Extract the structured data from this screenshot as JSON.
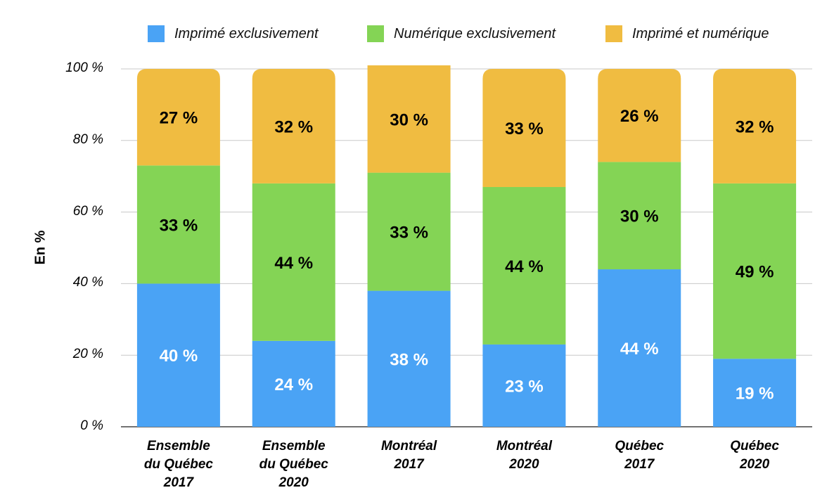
{
  "chart_data": {
    "type": "bar",
    "stacked": true,
    "categories": [
      "Ensemble\ndu Québec\n2017",
      "Ensemble\ndu Québec\n2020",
      "Montréal\n2017",
      "Montréal\n2020",
      "Québec\n2017",
      "Québec\n2020"
    ],
    "series": [
      {
        "name": "Imprimé exclusivement",
        "color": "#4aa3f5",
        "values": [
          40,
          24,
          38,
          23,
          44,
          19
        ],
        "labels": [
          "40 %",
          "24 %",
          "38 %",
          "23 %",
          "44 %",
          "19 %"
        ],
        "label_color": "#ffffff"
      },
      {
        "name": "Numérique exclusivement",
        "color": "#84d455",
        "values": [
          33,
          44,
          33,
          44,
          30,
          49
        ],
        "labels": [
          "33 %",
          "44 %",
          "33 %",
          "44 %",
          "30 %",
          "49 %"
        ],
        "label_color": "#000000"
      },
      {
        "name": "Imprimé et numérique",
        "color": "#f0bc41",
        "values": [
          27,
          32,
          30,
          33,
          26,
          32
        ],
        "labels": [
          "27 %",
          "32 %",
          "30 %",
          "33 %",
          "26 %",
          "32 %"
        ],
        "label_color": "#000000"
      }
    ],
    "ylabel": "En %",
    "ylim": [
      0,
      100
    ],
    "yticks": [
      0,
      20,
      40,
      60,
      80,
      100
    ],
    "ytick_labels": [
      "0 %",
      "20 %",
      "40 %",
      "60 %",
      "80 %",
      "100 %"
    ],
    "grid": true,
    "legend_position": "top"
  }
}
